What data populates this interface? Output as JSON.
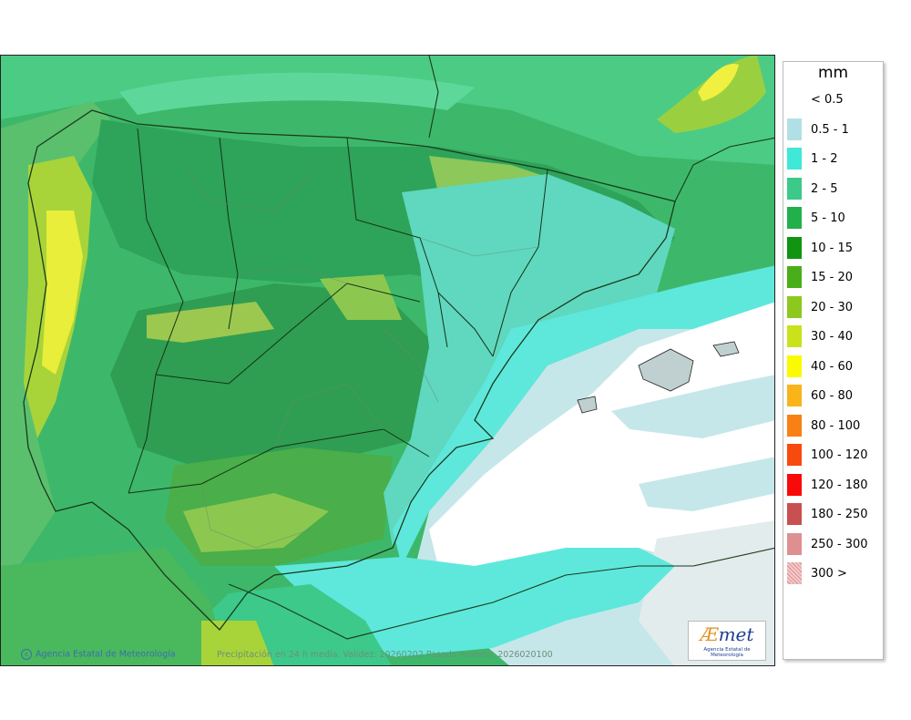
{
  "map": {
    "credit": "Agencia Estatal de Meteorología",
    "caption": "Precipitación en 24 h media. Validez: 20260202 Pasada modelo: 2026020100",
    "logo_mark_a": "Æ",
    "logo_mark_rest": "met",
    "logo_sub": "Agencia Estatal de Meteorología"
  },
  "legend": {
    "unit": "mm",
    "items": [
      {
        "label": "< 0.5",
        "color": "#ffffff"
      },
      {
        "label": "0.5 - 1",
        "color": "#b0e0e6"
      },
      {
        "label": "1 - 2",
        "color": "#40e8d8"
      },
      {
        "label": "2 - 5",
        "color": "#3cc98a"
      },
      {
        "label": "5 - 10",
        "color": "#22b04c"
      },
      {
        "label": "10 - 15",
        "color": "#119411"
      },
      {
        "label": "15 - 20",
        "color": "#4aae1a"
      },
      {
        "label": "20 - 30",
        "color": "#8cc81e"
      },
      {
        "label": "30 - 40",
        "color": "#c9e21c"
      },
      {
        "label": "40 - 60",
        "color": "#fafa00"
      },
      {
        "label": "60 - 80",
        "color": "#f9b41a"
      },
      {
        "label": "80 - 100",
        "color": "#f98014"
      },
      {
        "label": "100 - 120",
        "color": "#f94a0e"
      },
      {
        "label": "120 - 180",
        "color": "#f90a0a"
      },
      {
        "label": "180 - 250",
        "color": "#c85050"
      },
      {
        "label": "250 - 300",
        "color": "#de9090"
      },
      {
        "label": "300 >",
        "color": "#f5c8c8"
      }
    ]
  }
}
